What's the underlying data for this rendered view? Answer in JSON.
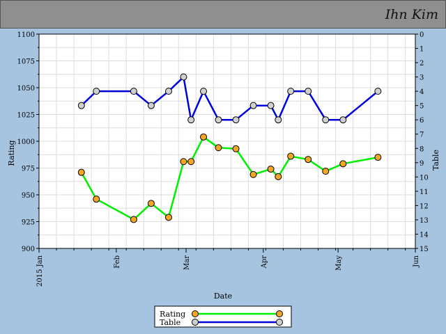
{
  "header": {
    "player_name": "Ihn Kim"
  },
  "chart_data": {
    "type": "line",
    "xlabel": "Date",
    "ylabel": "Rating",
    "y2label": "Table",
    "x_ticks": [
      {
        "label": "2015 Jan",
        "date": "2015-01-01"
      },
      {
        "label": "Feb",
        "date": "2015-02-01"
      },
      {
        "label": "Mar",
        "date": "2015-03-01"
      },
      {
        "label": "Apr",
        "date": "2015-04-01"
      },
      {
        "label": "May",
        "date": "2015-05-01"
      },
      {
        "label": "Jun",
        "date": "2015-06-01"
      }
    ],
    "xlim": [
      "2015-01-01",
      "2015-06-01"
    ],
    "ylim": [
      900,
      1100
    ],
    "y_ticks": [
      900,
      925,
      950,
      975,
      1000,
      1025,
      1050,
      1075,
      1100
    ],
    "y2lim": [
      15,
      0
    ],
    "y2_ticks": [
      0,
      1,
      2,
      3,
      4,
      5,
      6,
      7,
      8,
      9,
      10,
      11,
      12,
      13,
      14,
      15
    ],
    "grid": true,
    "legend_position": "bottom-center",
    "series": [
      {
        "name": "Rating",
        "axis": "left",
        "line_color": "#00ee00",
        "marker_color": "#f5a623",
        "points": [
          {
            "x": "2015-01-18",
            "y": 971
          },
          {
            "x": "2015-01-24",
            "y": 946
          },
          {
            "x": "2015-02-08",
            "y": 927
          },
          {
            "x": "2015-02-15",
            "y": 942
          },
          {
            "x": "2015-02-22",
            "y": 929
          },
          {
            "x": "2015-02-28",
            "y": 981
          },
          {
            "x": "2015-03-03",
            "y": 981
          },
          {
            "x": "2015-03-08",
            "y": 1004
          },
          {
            "x": "2015-03-14",
            "y": 994
          },
          {
            "x": "2015-03-21",
            "y": 993
          },
          {
            "x": "2015-03-28",
            "y": 969
          },
          {
            "x": "2015-04-04",
            "y": 974
          },
          {
            "x": "2015-04-07",
            "y": 967
          },
          {
            "x": "2015-04-12",
            "y": 986
          },
          {
            "x": "2015-04-19",
            "y": 983
          },
          {
            "x": "2015-04-26",
            "y": 972
          },
          {
            "x": "2015-05-03",
            "y": 979
          },
          {
            "x": "2015-05-17",
            "y": 985
          }
        ]
      },
      {
        "name": "Table",
        "axis": "right",
        "line_color": "#0000dd",
        "marker_color": "#d0d0d0",
        "points": [
          {
            "x": "2015-01-18",
            "y": 5
          },
          {
            "x": "2015-01-24",
            "y": 4
          },
          {
            "x": "2015-02-08",
            "y": 4
          },
          {
            "x": "2015-02-15",
            "y": 5
          },
          {
            "x": "2015-02-22",
            "y": 4
          },
          {
            "x": "2015-02-28",
            "y": 3
          },
          {
            "x": "2015-03-03",
            "y": 6
          },
          {
            "x": "2015-03-08",
            "y": 4
          },
          {
            "x": "2015-03-14",
            "y": 6
          },
          {
            "x": "2015-03-21",
            "y": 6
          },
          {
            "x": "2015-03-28",
            "y": 5
          },
          {
            "x": "2015-04-04",
            "y": 5
          },
          {
            "x": "2015-04-07",
            "y": 6
          },
          {
            "x": "2015-04-12",
            "y": 4
          },
          {
            "x": "2015-04-19",
            "y": 4
          },
          {
            "x": "2015-04-26",
            "y": 6
          },
          {
            "x": "2015-05-03",
            "y": 6
          },
          {
            "x": "2015-05-17",
            "y": 4
          }
        ]
      }
    ]
  }
}
